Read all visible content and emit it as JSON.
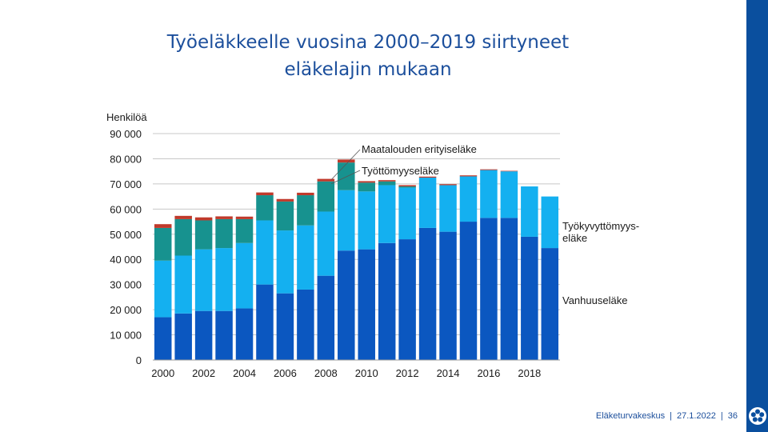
{
  "title_line1": "Työeläkkeelle vuosina 2000–2019 siirtyneet",
  "title_line2": "eläkelajin mukaan",
  "footer": {
    "org": "Eläketurvakeskus",
    "sep": "|",
    "date": "27.1.2022",
    "page": "36"
  },
  "colors": {
    "vanhuus": "#0b57c0",
    "tyokyvyttomyys": "#14b0f0",
    "tyottomyys": "#17928f",
    "maatalous": "#c0392b",
    "grid": "#c8c8c8",
    "brand": "#0a4f9e"
  },
  "chart_data": {
    "type": "bar",
    "stacked": true,
    "ylabel": "Henkilöä",
    "ylim": [
      0,
      90000
    ],
    "yticks": [
      0,
      10000,
      20000,
      30000,
      40000,
      50000,
      60000,
      70000,
      80000,
      90000
    ],
    "ytick_labels": [
      "0",
      "10 000",
      "20 000",
      "30 000",
      "40 000",
      "50 000",
      "60 000",
      "70 000",
      "80 000",
      "90 000"
    ],
    "grid": true,
    "categories": [
      "2000",
      "2001",
      "2002",
      "2003",
      "2004",
      "2005",
      "2006",
      "2007",
      "2008",
      "2009",
      "2010",
      "2011",
      "2012",
      "2013",
      "2014",
      "2015",
      "2016",
      "2017",
      "2018",
      "2019"
    ],
    "xtick_labels": [
      "2000",
      "",
      "2002",
      "",
      "2004",
      "",
      "2006",
      "",
      "2008",
      "",
      "2010",
      "",
      "2012",
      "",
      "2014",
      "",
      "2016",
      "",
      "2018",
      ""
    ],
    "series": [
      {
        "name": "Vanhuuseläke",
        "key": "vanhuus",
        "values": [
          17000,
          18500,
          19500,
          19500,
          20500,
          30000,
          26500,
          28000,
          33500,
          43500,
          44000,
          46500,
          48000,
          52500,
          51000,
          55000,
          56500,
          56500,
          49000,
          44500
        ]
      },
      {
        "name": "Työkyvyttömyys-eläke",
        "key": "tyokyvyttomyys",
        "values": [
          22500,
          23000,
          24500,
          25000,
          26000,
          25500,
          25000,
          25500,
          25500,
          24000,
          23000,
          23000,
          20500,
          20000,
          18500,
          18000,
          19000,
          18500,
          20000,
          20500
        ]
      },
      {
        "name": "Työttömyyseläke",
        "key": "tyottomyys",
        "values": [
          13000,
          14500,
          11500,
          11500,
          9500,
          10000,
          11500,
          12000,
          12000,
          11000,
          3500,
          1500,
          500,
          0,
          0,
          0,
          0,
          0,
          0,
          0
        ]
      },
      {
        "name": "Maatalouden erityiseläke",
        "key": "maatalous",
        "values": [
          1500,
          1300,
          1200,
          1100,
          1000,
          1100,
          1000,
          1000,
          1000,
          1200,
          600,
          500,
          500,
          400,
          400,
          400,
          300,
          200,
          0,
          0
        ]
      }
    ],
    "annotations": [
      {
        "text": "Maatalouden erityiseläke",
        "series": "maatalous"
      },
      {
        "text": "Työttömyyseläke",
        "series": "tyottomyys"
      },
      {
        "text_lines": [
          "Työkyvyttömyys-",
          "eläke"
        ],
        "series": "tyokyvyttomyys"
      },
      {
        "text": "Vanhuuseläke",
        "series": "vanhuus"
      }
    ]
  }
}
